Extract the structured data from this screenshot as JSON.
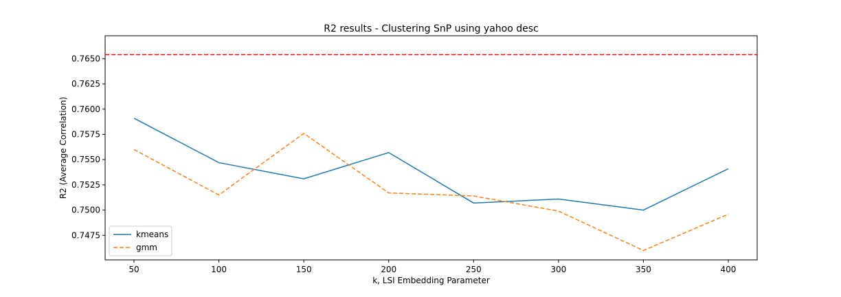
{
  "chart_data": {
    "type": "line",
    "title": "R2 results - Clustering SnP using yahoo desc",
    "xlabel": "k, LSI Embedding Parameter",
    "ylabel": "R2 (Average Correlation)",
    "x": [
      50,
      100,
      150,
      200,
      250,
      300,
      350,
      400
    ],
    "xlim": [
      33,
      417
    ],
    "ylim": [
      0.74507,
      0.76727
    ],
    "xticks": [
      50,
      100,
      150,
      200,
      250,
      300,
      350,
      400
    ],
    "yticks": [
      "0.7475",
      "0.7500",
      "0.7525",
      "0.7550",
      "0.7575",
      "0.7600",
      "0.7625",
      "0.7650"
    ],
    "series": [
      {
        "name": "kmeans",
        "color": "#1f77b4",
        "dash": "solid",
        "values": [
          0.7591,
          0.7547,
          0.7531,
          0.7557,
          0.7507,
          0.7511,
          0.75,
          0.7541
        ]
      },
      {
        "name": "gmm",
        "color": "#ff7f0e",
        "dash": "dashed",
        "values": [
          0.756,
          0.7515,
          0.7576,
          0.7517,
          0.7514,
          0.7499,
          0.746,
          0.7496
        ]
      }
    ],
    "reference_line": {
      "y": 0.7654,
      "color": "#ff0000",
      "dash": "dashed"
    },
    "legend": {
      "placement": "lower-left"
    },
    "grid": false
  }
}
